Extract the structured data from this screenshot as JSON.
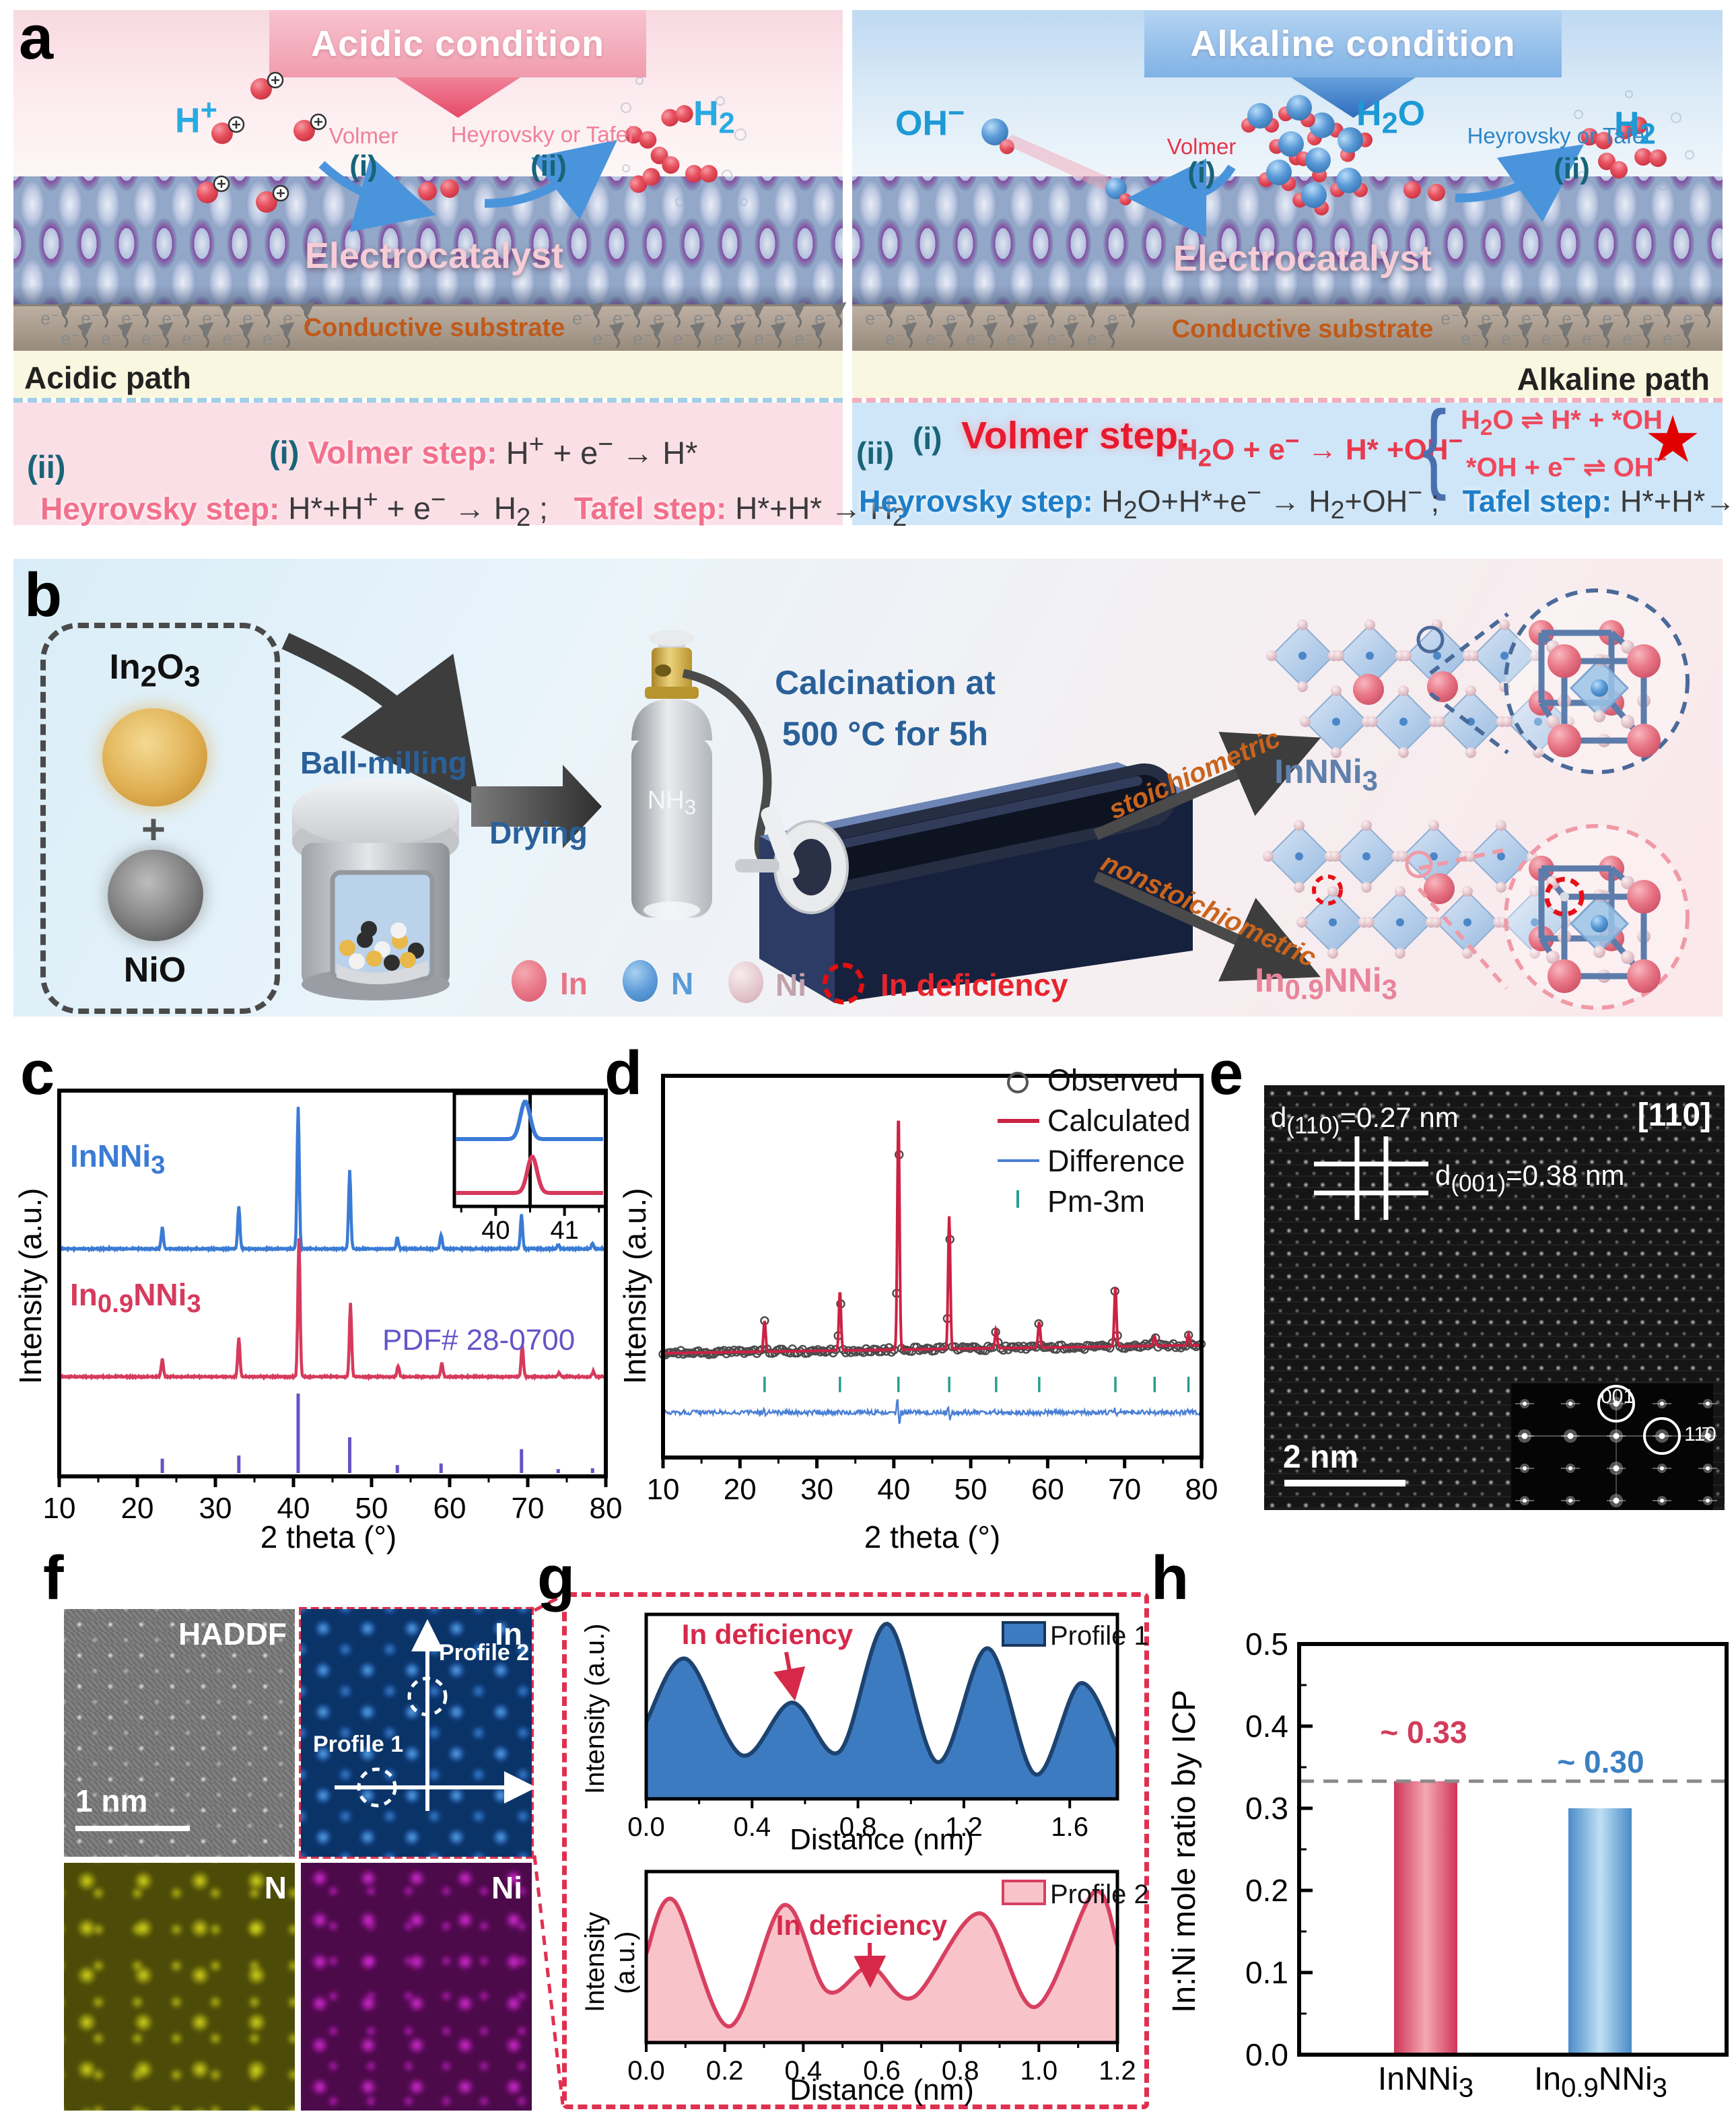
{
  "labels": {
    "a": "a",
    "b": "b",
    "c": "c",
    "d": "d",
    "e": "e",
    "f": "f",
    "g": "g",
    "h": "h"
  },
  "panel_a": {
    "acidic": {
      "banner": "Acidic condition",
      "ion_html": "H<sup>+</sup>",
      "volmer": "Volmer",
      "step_i": "(i)",
      "heyrovsky_or_tafel": "Heyrovsky or Tafel",
      "step_ii": "(ii)",
      "product_html": "H<sub>2</sub>",
      "catalyst": "Electrocatalyst",
      "substrate": "Conductive substrate",
      "electron_html": "e<sup>−</sup>",
      "path_label": "Acidic path",
      "eq_i": "(i)",
      "eq_volmer_name": "Volmer step:",
      "eq_volmer_html": "H<sup>+</sup> + e<sup>−</sup> → H*",
      "eq_ii": "(ii)",
      "eq_heyrovsky_name": "Heyrovsky step:",
      "eq_heyrovsky_html": "H*+H<sup>+</sup> + e<sup>−</sup> → H<sub>2</sub> ;",
      "eq_tafel_name": "Tafel step:",
      "eq_tafel_html": "H*+H* → H<sub>2</sub>"
    },
    "alkaline": {
      "banner": "Alkaline condition",
      "ion_html": "OH<sup>−</sup>",
      "volmer": "Volmer",
      "step_i": "(i)",
      "reactant_html": "H<sub>2</sub>O",
      "heyrovsky_or_tafel": "Heyrovsky or Tafel",
      "step_ii": "(ii)",
      "product_html": "H<sub>2</sub>",
      "catalyst": "Electrocatalyst",
      "substrate": "Conductive substrate",
      "electron_html": "e<sup>−</sup>",
      "path_label": "Alkaline path",
      "eq_ii": "(ii)",
      "eq_i": "(i)",
      "eq_volmer_name": "Volmer step:",
      "eq_volmer_html": "H<sub>2</sub>O + e<sup>−</sup> → H* +OH<sup>−</sup>",
      "bracket_top_html": "H<sub>2</sub>O ⇌ H* + *OH",
      "bracket_bottom_html": "*OH + e<sup>−</sup> ⇌ OH<sup>−</sup>",
      "star": "★",
      "eq_heyrovsky_name": "Heyrovsky step:",
      "eq_heyrovsky_html": "H<sub>2</sub>O+H*+e<sup>−</sup> → H<sub>2</sub>+OH<sup>−</sup> ;",
      "eq_tafel_name": "Tafel step:",
      "eq_tafel_html": "H*+H*→ H<sub>2</sub>"
    }
  },
  "panel_b": {
    "precursor1_html": "In<sub>2</sub>O<sub>3</sub>",
    "plus": "+",
    "precursor2": "NiO",
    "ball_milling": "Ball-milling",
    "drying": "Drying",
    "gas_html": "NH<sub>3</sub>",
    "calcination_line1": "Calcination at",
    "calcination_line2": "500 °C for 5h",
    "route_top": "stoichiometric",
    "route_bottom": "nonstoichiometric",
    "product_top_html": "InNNi<sub>3</sub>",
    "product_bottom_html": "In<sub>0.9</sub>NNi<sub>3</sub>",
    "legend": {
      "in_label": "In",
      "n_label": "N",
      "ni_label": "Ni",
      "deficiency_label": "In deficiency"
    }
  },
  "panel_c": {
    "xlabel": "2 theta (°)",
    "ylabel": "Intensity (a.u.)",
    "series1_html": "InNNi<sub>3</sub>",
    "series2_html": "In<sub>0.9</sub>NNi<sub>3</sub>",
    "reference": "PDF# 28-0700"
  },
  "panel_d": {
    "xlabel": "2 theta (°)",
    "ylabel": "Intensity (a.u.)"
  },
  "panel_e": {
    "zone_axis": "[110]",
    "d110_html": "d<sub>(110)</sub>=0.27 nm",
    "d001_html": "d<sub>(001)</sub>=0.38 nm",
    "scale_bar": "2 nm",
    "fft_spot_top": "001",
    "fft_spot_right": "11̄0"
  },
  "panel_f": {
    "map1": "HADDF",
    "map2": "In",
    "map3": "N",
    "map4": "Ni",
    "scale_bar": "1 nm",
    "profile1": "Profile 1",
    "profile2": "Profile 2"
  },
  "panel_g": {
    "annotation": "In deficiency"
  },
  "chart_data": [
    {
      "id": "c_xrd",
      "type": "line",
      "xlabel": "2 theta (°)",
      "ylabel": "Intensity (a.u.)",
      "xlim": [
        10,
        80
      ],
      "xticks": [
        10,
        20,
        30,
        40,
        50,
        60,
        70,
        80
      ],
      "grid": false,
      "series": [
        {
          "name": "InNNi3",
          "color": "#3a7bd5",
          "peaks": [
            [
              23.2,
              0.15
            ],
            [
              33.0,
              0.3
            ],
            [
              40.6,
              1.0
            ],
            [
              47.2,
              0.55
            ],
            [
              53.3,
              0.08
            ],
            [
              58.9,
              0.1
            ],
            [
              69.2,
              0.24
            ],
            [
              73.9,
              0.03
            ],
            [
              78.3,
              0.04
            ]
          ]
        },
        {
          "name": "In0.9NNi3",
          "color": "#d63a5c",
          "peaks": [
            [
              23.2,
              0.13
            ],
            [
              33.0,
              0.28
            ],
            [
              40.7,
              1.0
            ],
            [
              47.3,
              0.53
            ],
            [
              53.4,
              0.08
            ],
            [
              59.0,
              0.1
            ],
            [
              69.3,
              0.23
            ],
            [
              74.0,
              0.03
            ],
            [
              78.4,
              0.04
            ]
          ]
        }
      ],
      "reference": {
        "name": "PDF# 28-0700",
        "color": "#6355c7",
        "sticks": [
          [
            23.2,
            0.18
          ],
          [
            33.0,
            0.22
          ],
          [
            40.6,
            1.0
          ],
          [
            47.2,
            0.45
          ],
          [
            53.3,
            0.1
          ],
          [
            58.9,
            0.12
          ],
          [
            69.2,
            0.3
          ],
          [
            73.9,
            0.05
          ],
          [
            78.3,
            0.06
          ]
        ]
      },
      "inset": {
        "xlim": [
          39.4,
          41.6
        ],
        "xticks": [
          40,
          41
        ],
        "minor_ticks": [
          39.5,
          40.5,
          41.5
        ],
        "vline": 40.5,
        "peak_blue": 40.43,
        "peak_red": 40.53
      }
    },
    {
      "id": "d_rietveld",
      "type": "scatter+line",
      "xlabel": "2 theta (°)",
      "ylabel": "Intensity (a.u.)",
      "xlim": [
        10,
        80
      ],
      "xticks": [
        10,
        20,
        30,
        40,
        50,
        60,
        70,
        80
      ],
      "legend": [
        "Observed",
        "Calculated",
        "Difference",
        "Pm-3m"
      ],
      "peaks": [
        [
          23.2,
          0.13
        ],
        [
          33.0,
          0.25
        ],
        [
          40.6,
          1.0
        ],
        [
          47.2,
          0.56
        ],
        [
          53.3,
          0.08
        ],
        [
          58.9,
          0.11
        ],
        [
          68.8,
          0.25
        ],
        [
          73.9,
          0.04
        ],
        [
          78.3,
          0.05
        ]
      ],
      "bragg_positions": [
        23.2,
        33.0,
        40.6,
        47.2,
        53.3,
        58.9,
        68.8,
        73.9,
        78.3
      ],
      "colors": {
        "observed": "#4a4a4a",
        "calculated": "#cc2244",
        "difference": "#4a7fd4",
        "bragg": "#2a9d8f"
      }
    },
    {
      "id": "g_profile1",
      "type": "area",
      "name": "Profile 1",
      "fill": "#3d7bc0",
      "line": "#1d4370",
      "xlabel": "Distance (nm)",
      "ylabel": "Intensity (a.u.)",
      "xlim": [
        0,
        1.78
      ],
      "xticks": [
        0.0,
        0.4,
        0.8,
        1.2,
        1.6
      ],
      "points": [
        [
          0,
          0.44
        ],
        [
          0.15,
          0.8
        ],
        [
          0.36,
          0.25
        ],
        [
          0.55,
          0.55
        ],
        [
          0.73,
          0.27
        ],
        [
          0.91,
          1.0
        ],
        [
          1.1,
          0.21
        ],
        [
          1.29,
          0.86
        ],
        [
          1.47,
          0.14
        ],
        [
          1.64,
          0.66
        ],
        [
          1.78,
          0.3
        ]
      ],
      "annotation_x": 0.55
    },
    {
      "id": "g_profile2",
      "type": "area",
      "name": "Profile 2",
      "fill": "#f9c3ca",
      "line": "#d84060",
      "xlabel": "Distance (nm)",
      "ylabel": "Intensity (a.u.)",
      "xlim": [
        0,
        1.2
      ],
      "xticks": [
        0.0,
        0.2,
        0.4,
        0.6,
        0.8,
        1.0,
        1.2
      ],
      "points": [
        [
          0,
          0.55
        ],
        [
          0.07,
          0.88
        ],
        [
          0.21,
          0.1
        ],
        [
          0.35,
          0.85
        ],
        [
          0.46,
          0.32
        ],
        [
          0.57,
          0.47
        ],
        [
          0.68,
          0.28
        ],
        [
          0.85,
          0.8
        ],
        [
          0.99,
          0.22
        ],
        [
          1.14,
          0.93
        ],
        [
          1.2,
          0.6
        ]
      ],
      "annotation_x": 0.57
    },
    {
      "id": "h_icp",
      "type": "bar",
      "ylabel": "In:Ni mole ratio by ICP",
      "categories": [
        "InNNi3",
        "In0.9NNi3"
      ],
      "categories_html": [
        "InNNi<sub>3</sub>",
        "In<sub>0.9</sub>NNi<sub>3</sub>"
      ],
      "values": [
        0.333,
        0.3
      ],
      "bar_labels": [
        "~ 0.33",
        "~ 0.30"
      ],
      "bar_label_colors": [
        "#d23b5a",
        "#3a7fc2"
      ],
      "colors": [
        "#cf3558",
        "#4a8cc8"
      ],
      "ylim": [
        0,
        0.5
      ],
      "yticks": [
        0.0,
        0.1,
        0.2,
        0.3,
        0.4,
        0.5
      ],
      "dashed_line": 0.333
    }
  ]
}
